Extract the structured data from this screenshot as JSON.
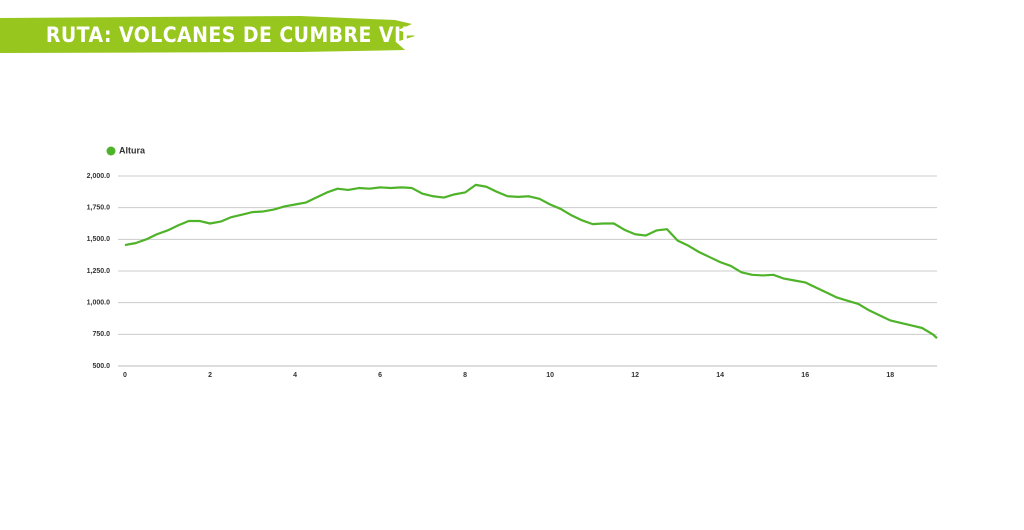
{
  "chart_data": {
    "type": "line",
    "title": "RUTA: VOLCANES DE CUMBRE VIEJA",
    "x": [
      0,
      0.25,
      0.5,
      0.75,
      1,
      1.25,
      1.5,
      1.75,
      2,
      2.25,
      2.5,
      2.75,
      3,
      3.25,
      3.5,
      3.75,
      4,
      4.25,
      4.5,
      4.75,
      5,
      5.25,
      5.5,
      5.75,
      6,
      6.25,
      6.5,
      6.75,
      7,
      7.25,
      7.5,
      7.75,
      8,
      8.25,
      8.5,
      8.75,
      9,
      9.25,
      9.5,
      9.75,
      10,
      10.25,
      10.5,
      10.75,
      11,
      11.25,
      11.5,
      11.75,
      12,
      12.25,
      12.5,
      12.75,
      13,
      13.25,
      13.5,
      13.75,
      14,
      14.25,
      14.5,
      14.75,
      15,
      15.25,
      15.5,
      15.75,
      16,
      16.25,
      16.5,
      16.75,
      17,
      17.25,
      17.5,
      17.75,
      18,
      18.25,
      18.5,
      18.75,
      19,
      19.1
    ],
    "series": [
      {
        "name": "Altura",
        "color": "#4fb32a",
        "values": [
          1455,
          1470,
          1500,
          1540,
          1570,
          1610,
          1645,
          1645,
          1625,
          1640,
          1675,
          1695,
          1715,
          1720,
          1735,
          1760,
          1775,
          1790,
          1830,
          1870,
          1900,
          1890,
          1905,
          1900,
          1910,
          1905,
          1910,
          1905,
          1860,
          1840,
          1830,
          1855,
          1870,
          1930,
          1915,
          1875,
          1840,
          1835,
          1840,
          1820,
          1775,
          1740,
          1690,
          1650,
          1620,
          1625,
          1625,
          1575,
          1540,
          1530,
          1570,
          1580,
          1490,
          1450,
          1400,
          1360,
          1320,
          1290,
          1240,
          1220,
          1215,
          1220,
          1190,
          1175,
          1160,
          1120,
          1080,
          1040,
          1015,
          990,
          940,
          900,
          860,
          840,
          820,
          800,
          750,
          720
        ]
      }
    ],
    "xlim": [
      0,
      19.1
    ],
    "xticks": [
      0,
      2,
      4,
      6,
      8,
      10,
      12,
      14,
      16,
      18
    ],
    "ylim": [
      500,
      2000
    ],
    "yticks": [
      {
        "value": 500,
        "label": "500.0"
      },
      {
        "value": 750,
        "label": "750.0"
      },
      {
        "value": 1000,
        "label": "1,000.0"
      },
      {
        "value": 1250,
        "label": "1,250.0"
      },
      {
        "value": 1500,
        "label": "1,500.0"
      },
      {
        "value": 1750,
        "label": "1,750.0"
      },
      {
        "value": 2000,
        "label": "2,000.0"
      }
    ],
    "grid": true,
    "legend": "top-left"
  }
}
